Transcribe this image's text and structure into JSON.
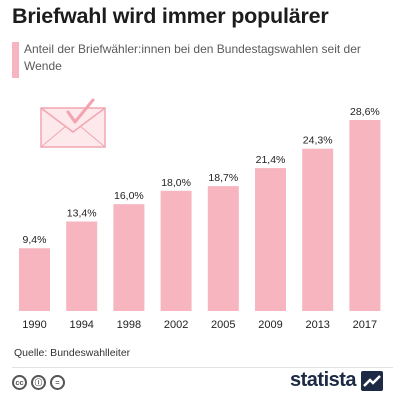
{
  "title": "Briefwahl wird immer populärer",
  "subtitle": "Anteil der Briefwähler:innen bei den Bundestagswahlen seit der Wende",
  "source": "Quelle: Bundeswahlleiter",
  "brand": "statista",
  "icons": [
    "envelope-check-icon",
    "cc-icon",
    "by-person-icon",
    "nd-equals-icon",
    "statista-logo-icon"
  ],
  "license_icons": [
    "cc",
    "ⓘ",
    "="
  ],
  "colors": {
    "bar": "#f7b6bf",
    "title": "#1c1c1c",
    "text": "#5a5a5a",
    "brand": "#1d2a44"
  },
  "chart_data": {
    "type": "bar",
    "title": "Briefwahl wird immer populärer",
    "subtitle": "Anteil der Briefwähler:innen bei den Bundestagswahlen seit der Wende",
    "categories": [
      "1990",
      "1994",
      "1998",
      "2002",
      "2005",
      "2009",
      "2013",
      "2017"
    ],
    "values": [
      9.4,
      13.4,
      16.0,
      18.0,
      18.7,
      21.4,
      24.3,
      28.6
    ],
    "value_labels": [
      "9,4%",
      "13,4%",
      "16,0%",
      "18,0%",
      "18,7%",
      "21,4%",
      "24,3%",
      "28,6%"
    ],
    "unit": "%",
    "ylim": [
      0,
      28.6
    ],
    "grid": false,
    "legend": "none"
  }
}
